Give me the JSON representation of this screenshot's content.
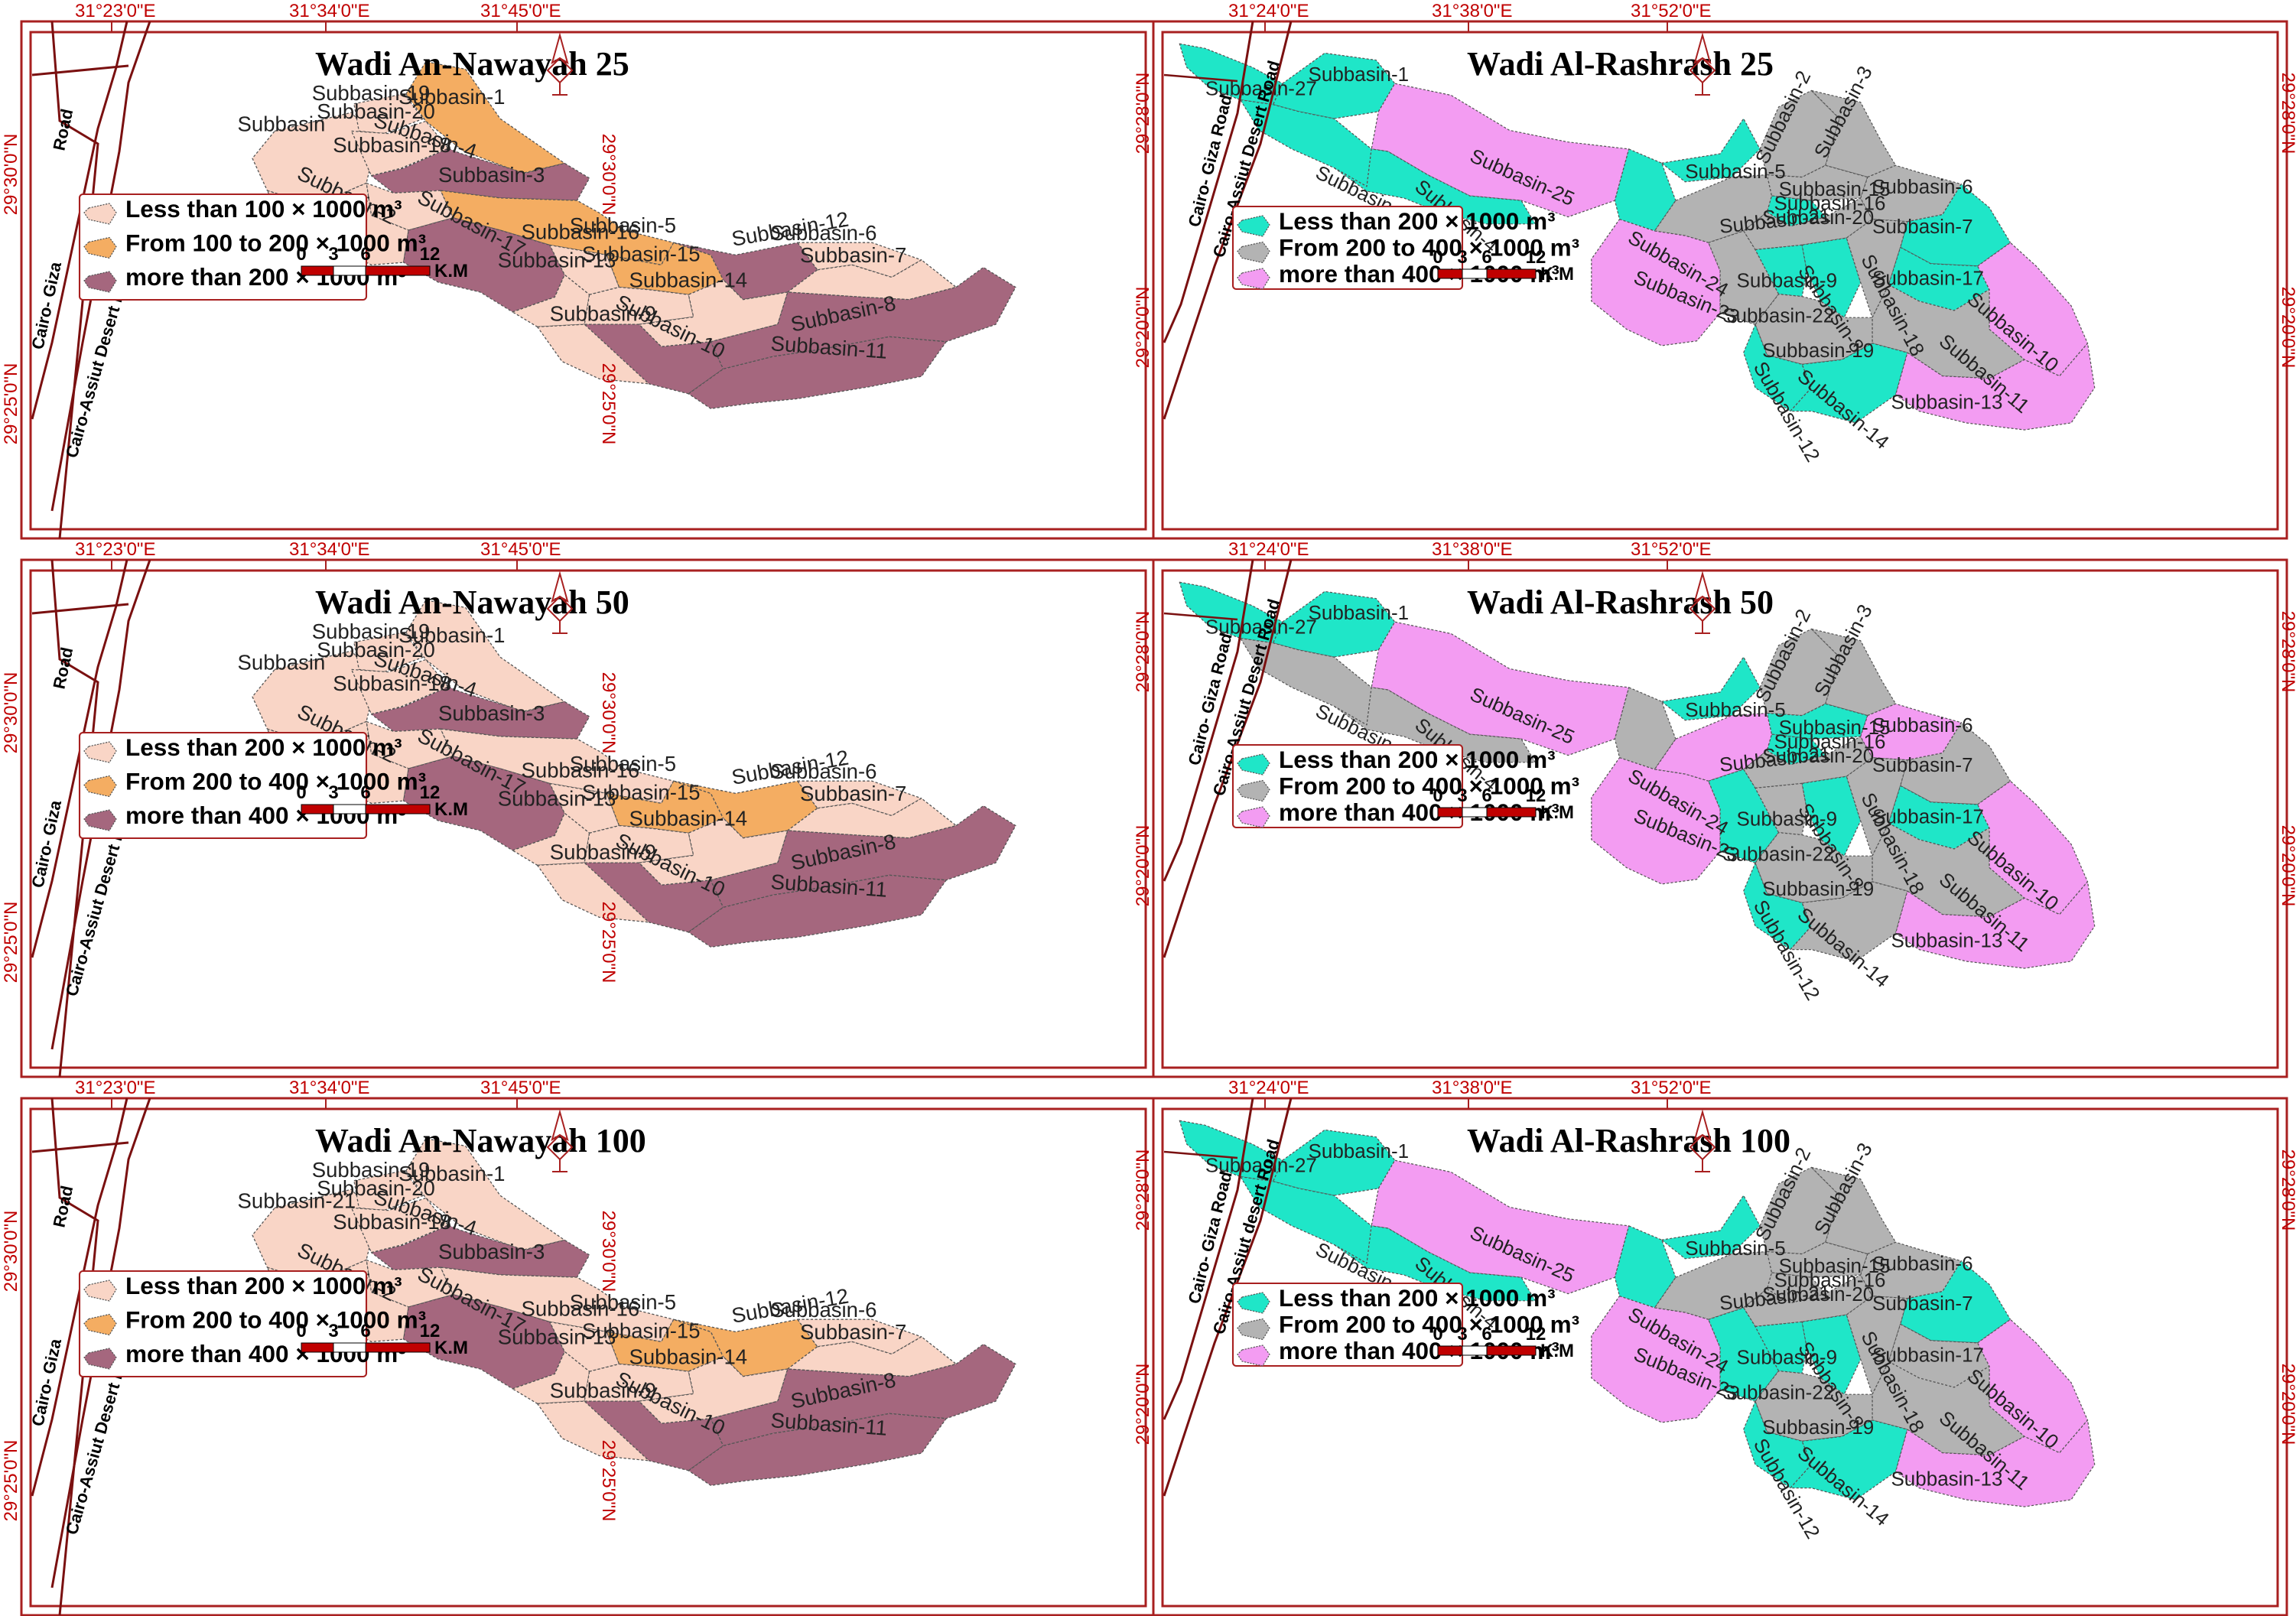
{
  "colors": {
    "nw_low": "#f9d5c6",
    "nw_mid": "#f4ad62",
    "nw_high": "#a5677e",
    "rs_low": "#1fe6c8",
    "rs_mid": "#b3b3b3",
    "rs_high": "#f39cf2",
    "frame": "#a82020",
    "road": "#7a1010",
    "coord": "#c00000"
  },
  "panels": [
    {
      "id": "nw25",
      "kind": "nawayah",
      "title": "Wadi An-Nawayah 25",
      "top_coords": [
        "31°23'0\"E",
        "31°34'0\"E",
        "31°45'0\"E"
      ],
      "left_coords": [
        "29°30'0\"N",
        "29°25'0\"N"
      ],
      "right_coords": [
        "29°30'0\"N",
        "29°25'0\"N"
      ],
      "roads": [
        "Road",
        "Cairo- Giza",
        "Cairo-Assiut Desert Road"
      ],
      "legend": [
        {
          "cls": "low",
          "label": "Less than 100 × 1000 m³"
        },
        {
          "cls": "mid",
          "label": "From 100 to 200 × 1000 m³"
        },
        {
          "cls": "high",
          "label": "more than 200 × 1000  m³"
        }
      ],
      "scale": {
        "ticks": [
          "0",
          "3",
          "6",
          "12"
        ],
        "unit": "K.M"
      },
      "classes": {
        "sb1": "mid",
        "sb19": "low",
        "sb20": "low",
        "sb4": "high",
        "sb18": "low",
        "sb2": "low",
        "sb3": "mid",
        "sb17": "high",
        "sb16": "low",
        "sb5": "mid",
        "sb13": "low",
        "sb15": "low",
        "sb12": "high",
        "sb6": "low",
        "sb7": "low",
        "sb14": "low",
        "sb9": "low",
        "sb10": "high",
        "sb8": "high",
        "sb11": "high",
        "sb21": "low"
      },
      "labels": [
        {
          "text": "Subbasin-1"
        },
        {
          "text": "Subbasin-19"
        },
        {
          "text": "Subbasin-20"
        },
        {
          "text": "Subbasin"
        },
        {
          "text": "Subbasin-4"
        },
        {
          "text": "Subbasin-18"
        },
        {
          "text": "Subbasin-2"
        },
        {
          "text": "Subbasin-3"
        },
        {
          "text": "Subbasin-17"
        },
        {
          "text": "Subbasin-16"
        },
        {
          "text": "Subbasin-5"
        },
        {
          "text": "Subbasin-13"
        },
        {
          "text": "Subbasin-15"
        },
        {
          "text": "Subbasin-12"
        },
        {
          "text": "Subbasin-6"
        },
        {
          "text": "Subbasin-7"
        },
        {
          "text": "Subbasin-14"
        },
        {
          "text": "Subbasin-9"
        },
        {
          "text": "Subbasin-10"
        },
        {
          "text": "Subbasin-8"
        },
        {
          "text": "Subbasin-11"
        }
      ]
    },
    {
      "id": "rs25",
      "kind": "rashrash",
      "title": "Wadi Al-Rashrash 25",
      "top_coords": [
        "31°24'0\"E",
        "31°38'0\"E",
        "31°52'0\"E"
      ],
      "left_coords": [
        "29°28'0\"N",
        "29°20'0\"N"
      ],
      "right_coords": [
        "29°28'0\"N",
        "29°20'0\"N"
      ],
      "roads": [
        "Cairo- Giza Road",
        "Cairo-Assiut Desert Road"
      ],
      "legend": [
        {
          "cls": "low",
          "label": "Less than 200 × 1000  m³"
        },
        {
          "cls": "mid",
          "label": "From 200 to 400 × 1000  m³"
        },
        {
          "cls": "high",
          "label": "more than 400 × 1000  m³"
        }
      ],
      "scale": {
        "ticks": [
          "0",
          "3",
          "6",
          "12"
        ],
        "unit": "K.M"
      },
      "classes": {
        "sb1": "low",
        "sb27": "low",
        "sb26": "low",
        "sb25": "high",
        "sb4": "low",
        "sb24": "low",
        "sb5": "low",
        "sb2": "mid",
        "sb3": "mid",
        "sb15": "mid",
        "sb16": "low",
        "sb21": "mid",
        "sb20": "mid",
        "sb6": "mid",
        "sb7": "low",
        "sb23": "high",
        "sb22": "mid",
        "sb9": "low",
        "sb8": "low",
        "sb18": "mid",
        "sb17": "low",
        "sb10": "high",
        "sb11": "mid",
        "sb19": "mid",
        "sb12": "low",
        "sb14": "low",
        "sb13": "high"
      },
      "labels": [
        {
          "text": "Subbasin-1"
        },
        {
          "text": "Subbasin-27"
        },
        {
          "text": "Subbasin-26"
        },
        {
          "text": "Subbasin-25"
        },
        {
          "text": "Subbasin-4"
        },
        {
          "text": "Subbasin-24"
        },
        {
          "text": "Subbasin-5"
        },
        {
          "text": "Subbasin-2"
        },
        {
          "text": "Subbasin-3"
        },
        {
          "text": "Subbasin-15"
        },
        {
          "text": "Subbasin-16"
        },
        {
          "text": "Subbasin-21"
        },
        {
          "text": "Subbasin-20"
        },
        {
          "text": "Subbasin-6"
        },
        {
          "text": "Subbasin-7"
        },
        {
          "text": "Subbasin-23"
        },
        {
          "text": "Subbasin-22"
        },
        {
          "text": "Subbasin-9"
        },
        {
          "text": "Subbasin-8"
        },
        {
          "text": "Subbasin-18"
        },
        {
          "text": "Subbasin-17"
        },
        {
          "text": "Subbasin-10"
        },
        {
          "text": "Subbasin-11"
        },
        {
          "text": "Subbasin-19"
        },
        {
          "text": "Subbasin-12"
        },
        {
          "text": "Subbasin-14"
        },
        {
          "text": "Subbasin-13"
        }
      ]
    },
    {
      "id": "nw50",
      "kind": "nawayah",
      "title": "Wadi An-Nawayah 50",
      "top_coords": [
        "31°23'0\"E",
        "31°34'0\"E",
        "31°45'0\"E"
      ],
      "left_coords": [
        "29°30'0\"N",
        "29°25'0\"N"
      ],
      "right_coords": [
        "29°30'0\"N",
        "29°25'0\"N"
      ],
      "roads": [
        "Road",
        "Cairo- Giza",
        "Cairo-Assiut  Desert Road"
      ],
      "legend": [
        {
          "cls": "low",
          "label": "Less than 200 × 1000  m³"
        },
        {
          "cls": "mid",
          "label": "From 200 to 400 × 1000  m³"
        },
        {
          "cls": "high",
          "label": "more than 400 × 1000  m³"
        }
      ],
      "scale": {
        "ticks": [
          "0",
          "3",
          "6",
          "12"
        ],
        "unit": "K.M"
      },
      "classes": {
        "sb1": "low",
        "sb19": "low",
        "sb20": "low",
        "sb4": "high",
        "sb18": "low",
        "sb2": "low",
        "sb3": "low",
        "sb17": "high",
        "sb16": "low",
        "sb5": "mid",
        "sb13": "low",
        "sb15": "low",
        "sb12": "mid",
        "sb6": "low",
        "sb7": "low",
        "sb14": "low",
        "sb9": "low",
        "sb10": "high",
        "sb8": "high",
        "sb11": "high",
        "sb21": "low"
      },
      "labels": [
        {
          "text": "Subbasin-1"
        },
        {
          "text": "Subbasin-19"
        },
        {
          "text": "Subbasin-20"
        },
        {
          "text": "Subbasin"
        },
        {
          "text": "Subbasin-4"
        },
        {
          "text": "Subbasin-18"
        },
        {
          "text": "Subbasin-2"
        },
        {
          "text": "Subbasin-3"
        },
        {
          "text": "Subbasin-17"
        },
        {
          "text": "Subbasin-16"
        },
        {
          "text": "Subbasin-5"
        },
        {
          "text": "Subbasin-13"
        },
        {
          "text": "Subbasin-15"
        },
        {
          "text": "Subbasin-12"
        },
        {
          "text": "Subbasin-6"
        },
        {
          "text": "Subbasin-7"
        },
        {
          "text": "Subbasin-14"
        },
        {
          "text": "Subbasin-9"
        },
        {
          "text": "Subbasin-10"
        },
        {
          "text": "Subbasin-8"
        },
        {
          "text": "Subbasin-11"
        }
      ]
    },
    {
      "id": "rs50",
      "kind": "rashrash",
      "title": "Wadi Al-Rashrash 50",
      "top_coords": [
        "31°24'0\"E",
        "31°38'0\"E",
        "31°52'0\"E"
      ],
      "left_coords": [
        "29°28'0\"N",
        "29°20'0\"N"
      ],
      "right_coords": [
        "29°28'0\"N",
        "29°20'0\"N"
      ],
      "roads": [
        "Cairo- Giza Road",
        "Cairo-Assiut Desert Road"
      ],
      "legend": [
        {
          "cls": "low",
          "label": "Less than 200 × 1000  m³"
        },
        {
          "cls": "mid",
          "label": "From 200 to 400 × 1000  m³"
        },
        {
          "cls": "high",
          "label": "more than 400 × 1000  m³"
        }
      ],
      "scale": {
        "ticks": [
          "0",
          "3",
          "6",
          "12"
        ],
        "unit": "K.M"
      },
      "classes": {
        "sb1": "low",
        "sb27": "low",
        "sb26": "mid",
        "sb25": "high",
        "sb4": "mid",
        "sb24": "mid",
        "sb5": "low",
        "sb2": "mid",
        "sb3": "mid",
        "sb15": "low",
        "sb16": "low",
        "sb21": "high",
        "sb20": "mid",
        "sb6": "high",
        "sb7": "mid",
        "sb23": "high",
        "sb22": "low",
        "sb9": "mid",
        "sb8": "low",
        "sb18": "mid",
        "sb17": "low",
        "sb10": "high",
        "sb11": "mid",
        "sb19": "mid",
        "sb12": "low",
        "sb14": "mid",
        "sb13": "high"
      },
      "labels": [
        {
          "text": "Subbasin-1"
        },
        {
          "text": "Subbasin-27"
        },
        {
          "text": "Subbasin-26"
        },
        {
          "text": "Subbasin-25"
        },
        {
          "text": "Subbasin-4"
        },
        {
          "text": "Subbasin-24"
        },
        {
          "text": "Subbasin-5"
        },
        {
          "text": "Subbasin-2"
        },
        {
          "text": "Subbasin-3"
        },
        {
          "text": "Subbasin-15"
        },
        {
          "text": "Subbasin-16"
        },
        {
          "text": "Subbasin-21"
        },
        {
          "text": "Subbasin-20"
        },
        {
          "text": "Subbasin-6"
        },
        {
          "text": "Subbasin-7"
        },
        {
          "text": "Subbasin-23"
        },
        {
          "text": "Subbasin-22"
        },
        {
          "text": "Subbasin-9"
        },
        {
          "text": "Subbasin-8"
        },
        {
          "text": "Subbasin-18"
        },
        {
          "text": "Subbasin-17"
        },
        {
          "text": "Subbasin-10"
        },
        {
          "text": "Subbasin-11"
        },
        {
          "text": "Subbasin-19"
        },
        {
          "text": "Subbasin-12"
        },
        {
          "text": "Subbasin-14"
        },
        {
          "text": "Subbasin-13"
        }
      ]
    },
    {
      "id": "nw100",
      "kind": "nawayah",
      "title": "Wadi An-Nawayah 100",
      "top_coords": [
        "31°23'0\"E",
        "31°34'0\"E",
        "31°45'0\"E"
      ],
      "left_coords": [
        "29°30'0\"N",
        "29°25'0\"N"
      ],
      "right_coords": [
        "29°30'0\"N",
        "29°25'0\"N"
      ],
      "roads": [
        "Road",
        "Cairo- Giza",
        "Cairo-Assiut Desert Road"
      ],
      "legend": [
        {
          "cls": "low",
          "label": "Less than 200 × 1000  m³"
        },
        {
          "cls": "mid",
          "label": "From 200 to 400 × 1000  m³"
        },
        {
          "cls": "high",
          "label": "more than 400 × 1000  m³"
        }
      ],
      "scale": {
        "ticks": [
          "0",
          "3",
          "6",
          "12"
        ],
        "unit": "K.M"
      },
      "classes": {
        "sb1": "low",
        "sb19": "low",
        "sb20": "low",
        "sb4": "high",
        "sb18": "low",
        "sb2": "low",
        "sb3": "low",
        "sb17": "high",
        "sb16": "low",
        "sb5": "mid",
        "sb13": "low",
        "sb15": "low",
        "sb12": "mid",
        "sb6": "low",
        "sb7": "low",
        "sb14": "low",
        "sb9": "low",
        "sb10": "high",
        "sb8": "high",
        "sb11": "high",
        "sb21": "low"
      },
      "labels": [
        {
          "text": "Subbasin-1"
        },
        {
          "text": "Subbasin-19"
        },
        {
          "text": "Subbasin-20"
        },
        {
          "text": "Subbasin-21"
        },
        {
          "text": "Subbasin-4"
        },
        {
          "text": "Subbasin-18"
        },
        {
          "text": "Subbasin-2"
        },
        {
          "text": "Subbasin-3"
        },
        {
          "text": "Subbasin-17"
        },
        {
          "text": "Subbasin-16"
        },
        {
          "text": "Subbasin-5"
        },
        {
          "text": "Subbasin-13"
        },
        {
          "text": "Subbasin-15"
        },
        {
          "text": "Subbasin-12"
        },
        {
          "text": "Subbasin-6"
        },
        {
          "text": "Subbasin-7"
        },
        {
          "text": "Subbasin-14"
        },
        {
          "text": "Subbasin-9"
        },
        {
          "text": "Subbasin-10"
        },
        {
          "text": "Subbasin-8"
        },
        {
          "text": "Subbasin-11"
        }
      ]
    },
    {
      "id": "rs100",
      "kind": "rashrash",
      "title": "Wadi Al-Rashrash 100",
      "top_coords": [
        "31°24'0\"E",
        "31°38'0\"E",
        "31°52'0\"E"
      ],
      "left_coords": [
        "29°28'0\"N",
        "29°20'0\"N"
      ],
      "right_coords": [
        "29°28'0\"N",
        "29°20'0\"N"
      ],
      "roads": [
        "Cairo- Giza Road",
        "Cairo-Assiut desert Road"
      ],
      "legend": [
        {
          "cls": "low",
          "label": "Less than 200 × 1000 m³"
        },
        {
          "cls": "mid",
          "label": "From 200 to 400 × 1000  m³"
        },
        {
          "cls": "high",
          "label": "more than 400 × 1000  m³"
        }
      ],
      "scale": {
        "ticks": [
          "0",
          "3",
          "6",
          "12"
        ],
        "unit": "K.M"
      },
      "classes": {
        "sb1": "low",
        "sb27": "low",
        "sb26": "low",
        "sb25": "high",
        "sb4": "low",
        "sb24": "low",
        "sb5": "low",
        "sb2": "mid",
        "sb3": "mid",
        "sb15": "mid",
        "sb16": "mid",
        "sb21": "mid",
        "sb20": "mid",
        "sb6": "mid",
        "sb7": "low",
        "sb23": "high",
        "sb22": "low",
        "sb9": "low",
        "sb8": "low",
        "sb18": "mid",
        "sb17": "mid",
        "sb10": "high",
        "sb11": "mid",
        "sb19": "mid",
        "sb12": "low",
        "sb14": "low",
        "sb13": "high"
      },
      "labels": [
        {
          "text": "Subbasin-1"
        },
        {
          "text": "Subbasin-27"
        },
        {
          "text": "Subbasin-26"
        },
        {
          "text": "Subbasin-25"
        },
        {
          "text": "Subbasin-4"
        },
        {
          "text": "Subbasin-24"
        },
        {
          "text": "Subbasin-5"
        },
        {
          "text": "Subbasin-2"
        },
        {
          "text": "Subbasin-3"
        },
        {
          "text": "Subbasin-15"
        },
        {
          "text": "Subbasin-16"
        },
        {
          "text": "Subbasin-21"
        },
        {
          "text": "Subbasin-20"
        },
        {
          "text": "Subbasin-6"
        },
        {
          "text": "Subbasin-7"
        },
        {
          "text": "Subbasin-23"
        },
        {
          "text": "Subbasin-22"
        },
        {
          "text": "Subbasin-9"
        },
        {
          "text": "Subbasin-8"
        },
        {
          "text": "Subbasin-18"
        },
        {
          "text": "Subbasin-17"
        },
        {
          "text": "Subbasin-10"
        },
        {
          "text": "Subbasin-11"
        },
        {
          "text": "Subbasin-19"
        },
        {
          "text": "Subbasin-12"
        },
        {
          "text": "Subbasin-14"
        },
        {
          "text": "Subbasin-13"
        }
      ]
    }
  ]
}
